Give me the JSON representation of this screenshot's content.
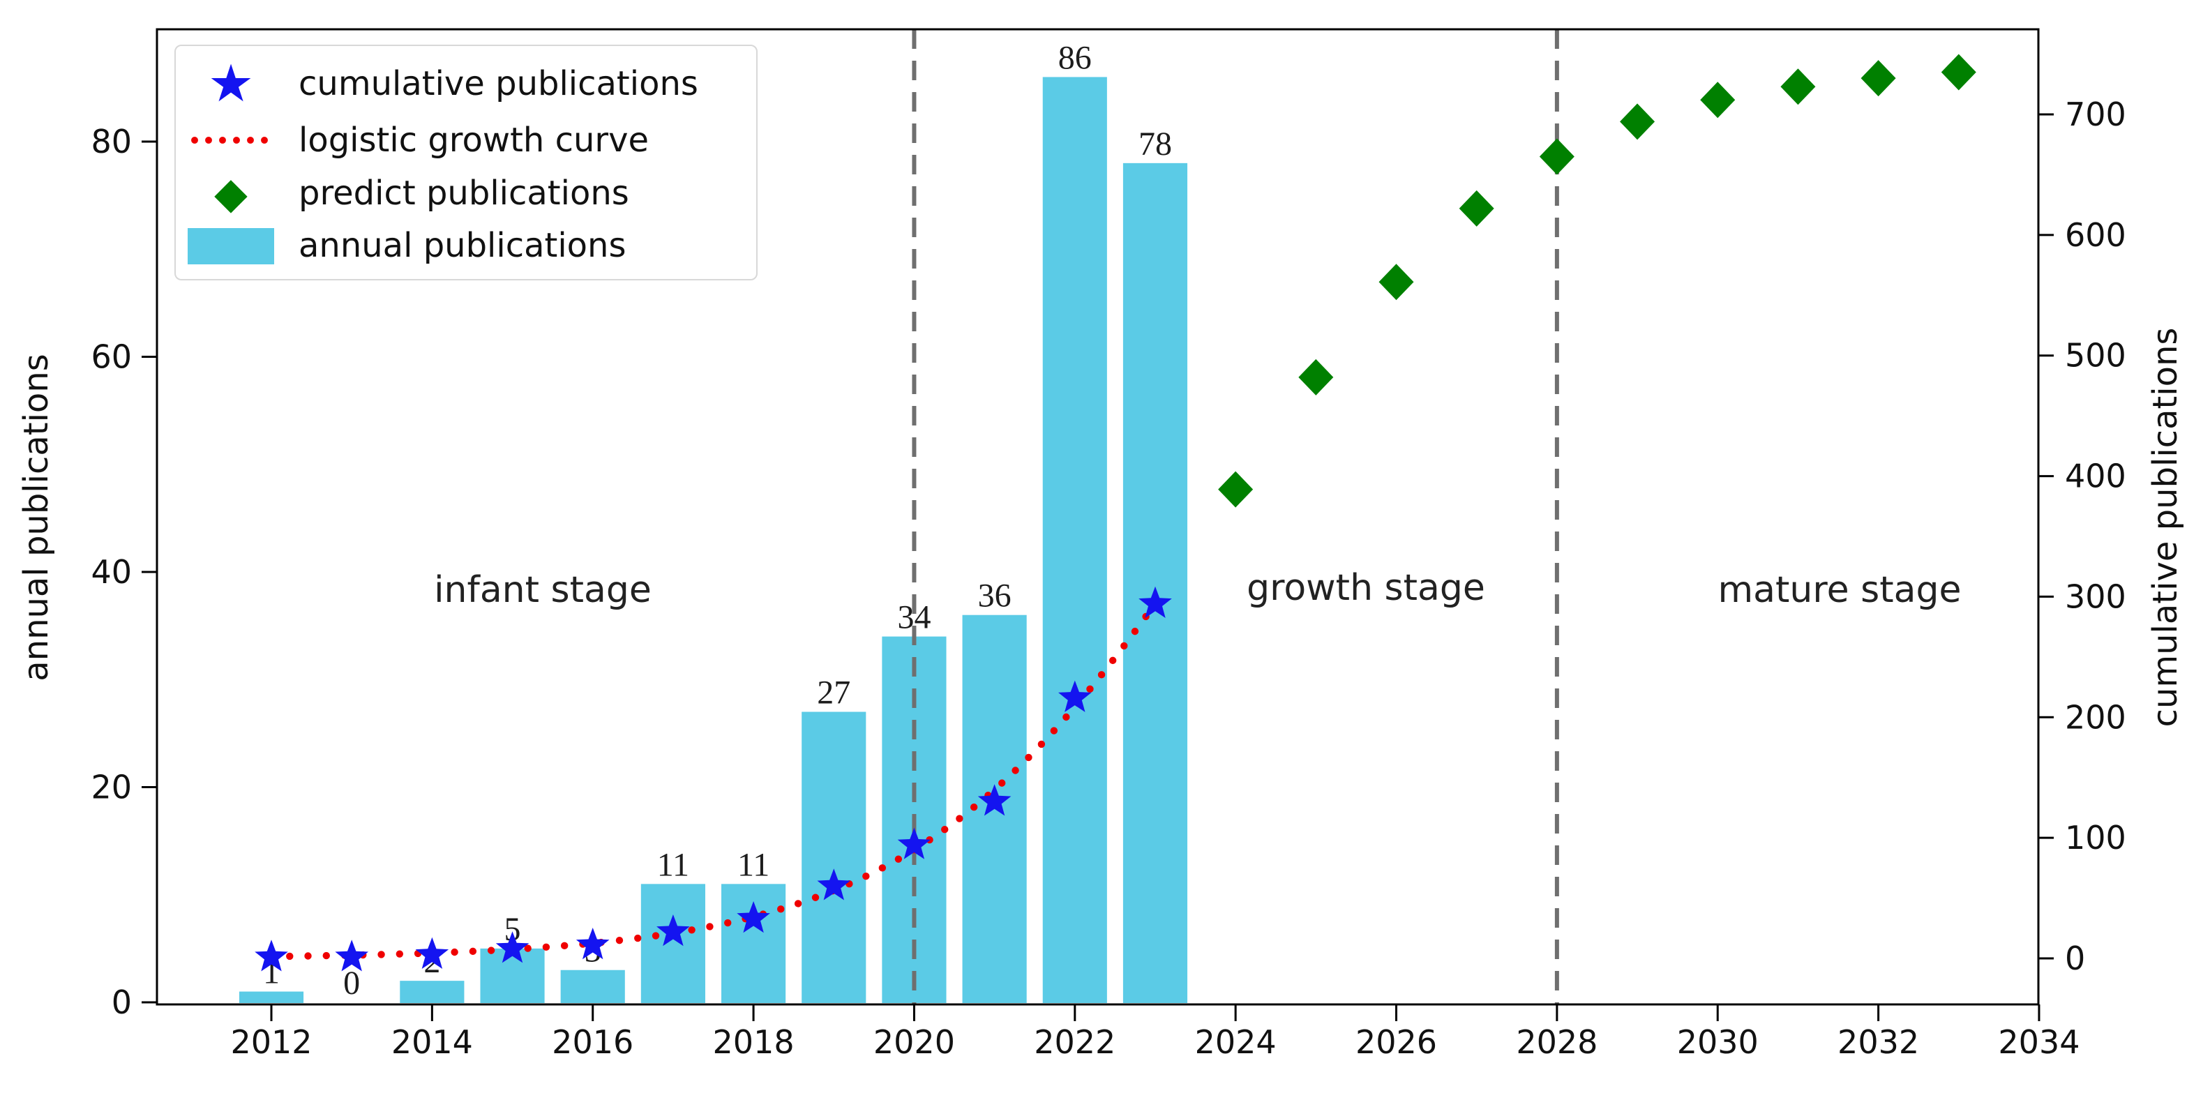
{
  "chart_data": {
    "type": "combo-bar-scatter-line",
    "x_axis": {
      "ticks": [
        2012,
        2014,
        2016,
        2018,
        2020,
        2022,
        2024,
        2026,
        2028,
        2030,
        2032,
        2034
      ],
      "range_years": [
        2010.6,
        2034
      ]
    },
    "left_y_axis": {
      "label": "annual publications",
      "ticks": [
        0,
        20,
        40,
        60,
        80
      ],
      "range": [
        0,
        90.5
      ]
    },
    "right_y_axis": {
      "label": "cumulative publications",
      "ticks": [
        0,
        100,
        200,
        300,
        400,
        500,
        600,
        700
      ],
      "range": [
        -38,
        771
      ]
    },
    "years": [
      2012,
      2013,
      2014,
      2015,
      2016,
      2017,
      2018,
      2019,
      2020,
      2021,
      2022,
      2023
    ],
    "annual_publications": {
      "name": "annual publications",
      "type": "bar",
      "axis": "left",
      "color": "#5bcbe6",
      "bar_width_years": 0.8,
      "values": [
        1,
        0,
        2,
        5,
        3,
        11,
        11,
        27,
        34,
        36,
        86,
        78
      ],
      "value_labels_shown": true
    },
    "cumulative_publications": {
      "name": "cumulative publications",
      "type": "scatter",
      "marker": "star",
      "axis": "right",
      "color": "#1414f0",
      "values": [
        1,
        1,
        3,
        8,
        11,
        22,
        33,
        60,
        94,
        130,
        216,
        294
      ]
    },
    "logistic_growth_curve": {
      "name": "logistic growth curve",
      "type": "dotted-line",
      "axis": "right",
      "color": "#ef0000",
      "L": 740,
      "k": 0.52,
      "t0": 2023.8,
      "t_start": 2012,
      "t_end": 2023.15
    },
    "predict_publications": {
      "name": "predict publications",
      "type": "scatter",
      "marker": "diamond",
      "axis": "right",
      "color": "#008000",
      "years": [
        2024,
        2025,
        2026,
        2027,
        2028,
        2029,
        2030,
        2031,
        2032,
        2033
      ],
      "values": [
        389,
        482,
        561,
        622,
        665,
        694,
        712,
        723,
        730,
        735
      ]
    },
    "stage_dividers": {
      "style": "dashed",
      "color": "#6f6f6f",
      "years": [
        2020,
        2028
      ]
    },
    "stage_labels": [
      {
        "text": "infant stage",
        "year": 2015.4
      },
      {
        "text": "growth stage",
        "year": 2025.6
      },
      {
        "text": "mature stage",
        "year": 2031.5
      }
    ],
    "grid": "off",
    "legend_position": "upper-left"
  },
  "legend": {
    "items": [
      {
        "marker": "star",
        "label": "cumulative publications"
      },
      {
        "marker": "dotted-line",
        "label": "logistic growth curve"
      },
      {
        "marker": "diamond",
        "label": "predict publications"
      },
      {
        "marker": "bar",
        "label": "annual publications"
      }
    ]
  }
}
